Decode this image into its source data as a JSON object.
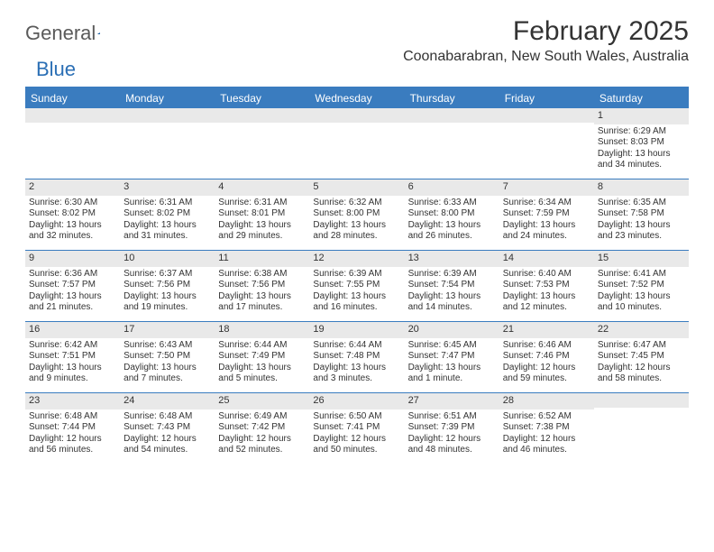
{
  "logo": {
    "text1": "General",
    "text2": "Blue"
  },
  "title": "February 2025",
  "location": "Coonabarabran, New South Wales, Australia",
  "colors": {
    "header_bar": "#3a7cbf",
    "daynum_bg": "#e9e9e9",
    "text": "#333333",
    "logo_gray": "#5a5a5a",
    "logo_blue": "#2b6fb5",
    "white": "#ffffff"
  },
  "days_of_week": [
    "Sunday",
    "Monday",
    "Tuesday",
    "Wednesday",
    "Thursday",
    "Friday",
    "Saturday"
  ],
  "weeks": [
    [
      {
        "n": "",
        "sunrise": "",
        "sunset": "",
        "daylight": ""
      },
      {
        "n": "",
        "sunrise": "",
        "sunset": "",
        "daylight": ""
      },
      {
        "n": "",
        "sunrise": "",
        "sunset": "",
        "daylight": ""
      },
      {
        "n": "",
        "sunrise": "",
        "sunset": "",
        "daylight": ""
      },
      {
        "n": "",
        "sunrise": "",
        "sunset": "",
        "daylight": ""
      },
      {
        "n": "",
        "sunrise": "",
        "sunset": "",
        "daylight": ""
      },
      {
        "n": "1",
        "sunrise": "Sunrise: 6:29 AM",
        "sunset": "Sunset: 8:03 PM",
        "daylight": "Daylight: 13 hours and 34 minutes."
      }
    ],
    [
      {
        "n": "2",
        "sunrise": "Sunrise: 6:30 AM",
        "sunset": "Sunset: 8:02 PM",
        "daylight": "Daylight: 13 hours and 32 minutes."
      },
      {
        "n": "3",
        "sunrise": "Sunrise: 6:31 AM",
        "sunset": "Sunset: 8:02 PM",
        "daylight": "Daylight: 13 hours and 31 minutes."
      },
      {
        "n": "4",
        "sunrise": "Sunrise: 6:31 AM",
        "sunset": "Sunset: 8:01 PM",
        "daylight": "Daylight: 13 hours and 29 minutes."
      },
      {
        "n": "5",
        "sunrise": "Sunrise: 6:32 AM",
        "sunset": "Sunset: 8:00 PM",
        "daylight": "Daylight: 13 hours and 28 minutes."
      },
      {
        "n": "6",
        "sunrise": "Sunrise: 6:33 AM",
        "sunset": "Sunset: 8:00 PM",
        "daylight": "Daylight: 13 hours and 26 minutes."
      },
      {
        "n": "7",
        "sunrise": "Sunrise: 6:34 AM",
        "sunset": "Sunset: 7:59 PM",
        "daylight": "Daylight: 13 hours and 24 minutes."
      },
      {
        "n": "8",
        "sunrise": "Sunrise: 6:35 AM",
        "sunset": "Sunset: 7:58 PM",
        "daylight": "Daylight: 13 hours and 23 minutes."
      }
    ],
    [
      {
        "n": "9",
        "sunrise": "Sunrise: 6:36 AM",
        "sunset": "Sunset: 7:57 PM",
        "daylight": "Daylight: 13 hours and 21 minutes."
      },
      {
        "n": "10",
        "sunrise": "Sunrise: 6:37 AM",
        "sunset": "Sunset: 7:56 PM",
        "daylight": "Daylight: 13 hours and 19 minutes."
      },
      {
        "n": "11",
        "sunrise": "Sunrise: 6:38 AM",
        "sunset": "Sunset: 7:56 PM",
        "daylight": "Daylight: 13 hours and 17 minutes."
      },
      {
        "n": "12",
        "sunrise": "Sunrise: 6:39 AM",
        "sunset": "Sunset: 7:55 PM",
        "daylight": "Daylight: 13 hours and 16 minutes."
      },
      {
        "n": "13",
        "sunrise": "Sunrise: 6:39 AM",
        "sunset": "Sunset: 7:54 PM",
        "daylight": "Daylight: 13 hours and 14 minutes."
      },
      {
        "n": "14",
        "sunrise": "Sunrise: 6:40 AM",
        "sunset": "Sunset: 7:53 PM",
        "daylight": "Daylight: 13 hours and 12 minutes."
      },
      {
        "n": "15",
        "sunrise": "Sunrise: 6:41 AM",
        "sunset": "Sunset: 7:52 PM",
        "daylight": "Daylight: 13 hours and 10 minutes."
      }
    ],
    [
      {
        "n": "16",
        "sunrise": "Sunrise: 6:42 AM",
        "sunset": "Sunset: 7:51 PM",
        "daylight": "Daylight: 13 hours and 9 minutes."
      },
      {
        "n": "17",
        "sunrise": "Sunrise: 6:43 AM",
        "sunset": "Sunset: 7:50 PM",
        "daylight": "Daylight: 13 hours and 7 minutes."
      },
      {
        "n": "18",
        "sunrise": "Sunrise: 6:44 AM",
        "sunset": "Sunset: 7:49 PM",
        "daylight": "Daylight: 13 hours and 5 minutes."
      },
      {
        "n": "19",
        "sunrise": "Sunrise: 6:44 AM",
        "sunset": "Sunset: 7:48 PM",
        "daylight": "Daylight: 13 hours and 3 minutes."
      },
      {
        "n": "20",
        "sunrise": "Sunrise: 6:45 AM",
        "sunset": "Sunset: 7:47 PM",
        "daylight": "Daylight: 13 hours and 1 minute."
      },
      {
        "n": "21",
        "sunrise": "Sunrise: 6:46 AM",
        "sunset": "Sunset: 7:46 PM",
        "daylight": "Daylight: 12 hours and 59 minutes."
      },
      {
        "n": "22",
        "sunrise": "Sunrise: 6:47 AM",
        "sunset": "Sunset: 7:45 PM",
        "daylight": "Daylight: 12 hours and 58 minutes."
      }
    ],
    [
      {
        "n": "23",
        "sunrise": "Sunrise: 6:48 AM",
        "sunset": "Sunset: 7:44 PM",
        "daylight": "Daylight: 12 hours and 56 minutes."
      },
      {
        "n": "24",
        "sunrise": "Sunrise: 6:48 AM",
        "sunset": "Sunset: 7:43 PM",
        "daylight": "Daylight: 12 hours and 54 minutes."
      },
      {
        "n": "25",
        "sunrise": "Sunrise: 6:49 AM",
        "sunset": "Sunset: 7:42 PM",
        "daylight": "Daylight: 12 hours and 52 minutes."
      },
      {
        "n": "26",
        "sunrise": "Sunrise: 6:50 AM",
        "sunset": "Sunset: 7:41 PM",
        "daylight": "Daylight: 12 hours and 50 minutes."
      },
      {
        "n": "27",
        "sunrise": "Sunrise: 6:51 AM",
        "sunset": "Sunset: 7:39 PM",
        "daylight": "Daylight: 12 hours and 48 minutes."
      },
      {
        "n": "28",
        "sunrise": "Sunrise: 6:52 AM",
        "sunset": "Sunset: 7:38 PM",
        "daylight": "Daylight: 12 hours and 46 minutes."
      },
      {
        "n": "",
        "sunrise": "",
        "sunset": "",
        "daylight": ""
      }
    ]
  ]
}
